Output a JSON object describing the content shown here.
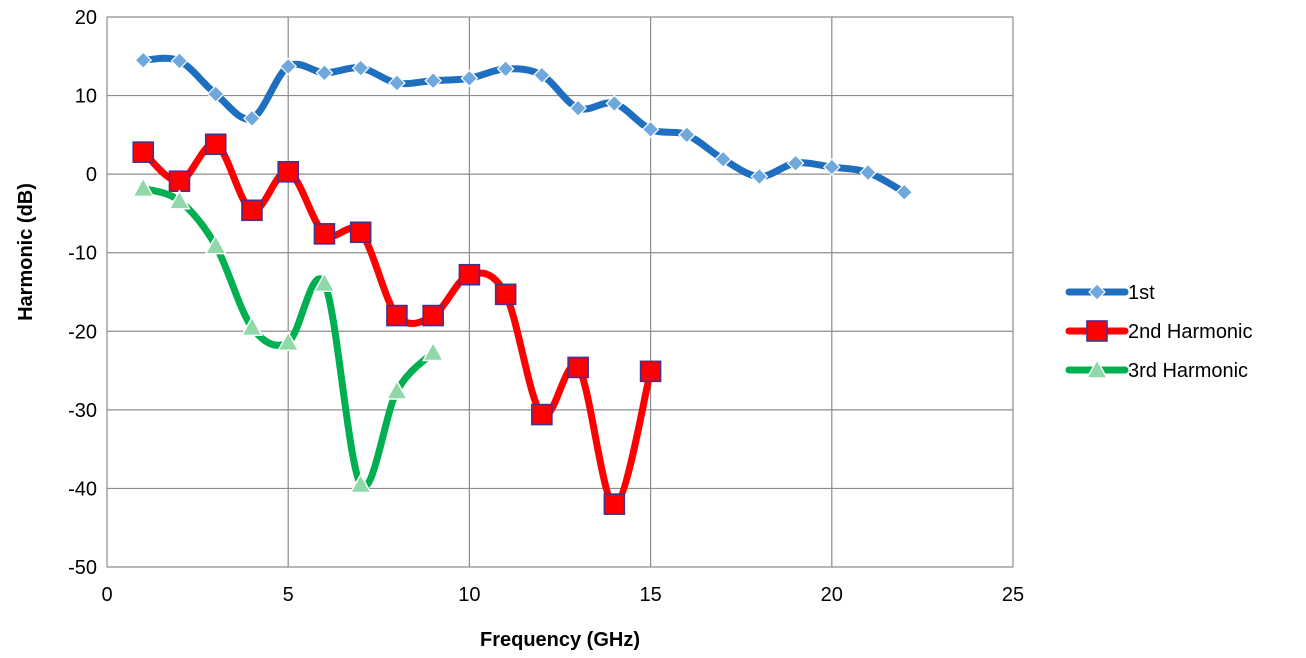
{
  "chart_data": {
    "type": "line",
    "title": "",
    "xlabel": "Frequency (GHz)",
    "ylabel": "Harmonic (dB)",
    "xlim": [
      0,
      25
    ],
    "ylim": [
      -50,
      20
    ],
    "xticks": [
      0,
      5,
      10,
      15,
      20,
      25
    ],
    "yticks": [
      -50,
      -40,
      -30,
      -20,
      -10,
      0,
      10,
      20
    ],
    "grid": true,
    "legend_position": "right",
    "smooth": true,
    "series": [
      {
        "name": "1st",
        "color": "#1f6fc0",
        "marker": "diamond",
        "x": [
          1,
          2,
          3,
          4,
          5,
          6,
          7,
          8,
          9,
          10,
          11,
          12,
          13,
          14,
          15,
          16,
          17,
          18,
          19,
          20,
          21,
          22
        ],
        "y": [
          14.5,
          14.4,
          10.2,
          7.1,
          13.7,
          12.9,
          13.5,
          11.6,
          11.9,
          12.2,
          13.4,
          12.6,
          8.4,
          9.0,
          5.7,
          5.0,
          1.9,
          -0.3,
          1.4,
          0.9,
          0.2,
          -2.3
        ]
      },
      {
        "name": "2nd Harmonic",
        "color": "#ff0000",
        "marker": "square",
        "x": [
          1,
          2,
          3,
          4,
          5,
          6,
          7,
          8,
          9,
          10,
          11,
          12,
          13,
          14,
          15
        ],
        "y": [
          2.8,
          -0.9,
          3.8,
          -4.6,
          0.3,
          -7.6,
          -7.4,
          -18.0,
          -18.0,
          -12.8,
          -15.3,
          -30.6,
          -24.6,
          -42.0,
          -25.1
        ]
      },
      {
        "name": "3rd Harmonic",
        "color": "#00b050",
        "marker": "triangle",
        "x": [
          1,
          2,
          3,
          4,
          5,
          6,
          7,
          8,
          9
        ],
        "y": [
          -1.8,
          -3.4,
          -9.1,
          -19.5,
          -21.4,
          -13.9,
          -39.5,
          -27.6,
          -22.7
        ]
      }
    ]
  }
}
